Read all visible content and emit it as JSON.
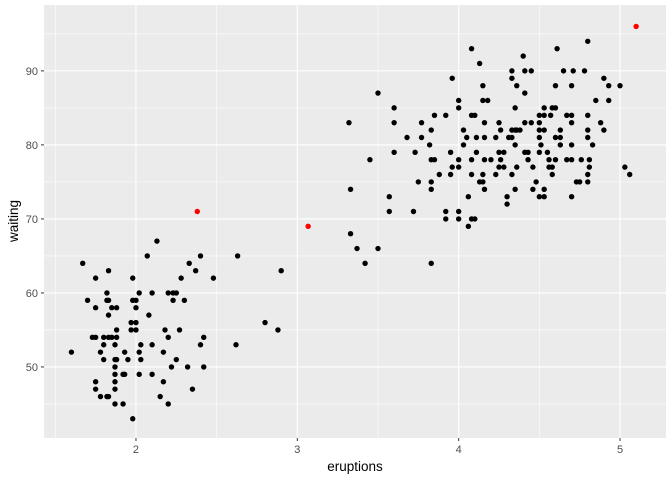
{
  "chart_data": {
    "type": "scatter",
    "title": "",
    "xlabel": "eruptions",
    "ylabel": "waiting",
    "xlim": [
      1.43,
      5.285
    ],
    "ylim": [
      40.4,
      98.9
    ],
    "x_ticks": [
      2,
      3,
      4,
      5
    ],
    "y_ticks": [
      50,
      60,
      70,
      80,
      90
    ],
    "x_tick_labels": [
      "2",
      "3",
      "4",
      "5"
    ],
    "y_tick_labels": [
      "50",
      "60",
      "70",
      "80",
      "90"
    ],
    "grid": true,
    "background": "#EBEBEB",
    "series": [
      {
        "color": "#000000",
        "points": [
          [
            2.13,
            67
          ],
          [
            2.07,
            65
          ],
          [
            2.4,
            65
          ],
          [
            2.63,
            65
          ],
          [
            1.67,
            64
          ],
          [
            2.33,
            64
          ],
          [
            1.83,
            63
          ],
          [
            2.37,
            63
          ],
          [
            2.9,
            63
          ],
          [
            1.75,
            62
          ],
          [
            1.98,
            62
          ],
          [
            2.28,
            62
          ],
          [
            2.48,
            62
          ],
          [
            1.82,
            60
          ],
          [
            2.02,
            60
          ],
          [
            2.1,
            60
          ],
          [
            2.2,
            60
          ],
          [
            2.23,
            60
          ],
          [
            2.25,
            60
          ],
          [
            1.7,
            59
          ],
          [
            1.82,
            59
          ],
          [
            1.83,
            59
          ],
          [
            1.98,
            59
          ],
          [
            2.0,
            59
          ],
          [
            2.23,
            59
          ],
          [
            2.3,
            59
          ],
          [
            1.75,
            58
          ],
          [
            1.85,
            58
          ],
          [
            1.88,
            58
          ],
          [
            2.0,
            58
          ],
          [
            1.83,
            57
          ],
          [
            2.08,
            57
          ],
          [
            1.97,
            56
          ],
          [
            2.0,
            56
          ],
          [
            2.8,
            56
          ],
          [
            1.88,
            55
          ],
          [
            1.97,
            55
          ],
          [
            2.0,
            55
          ],
          [
            2.18,
            55
          ],
          [
            2.27,
            55
          ],
          [
            2.88,
            55
          ],
          [
            1.73,
            54
          ],
          [
            1.75,
            54
          ],
          [
            1.8,
            54
          ],
          [
            1.83,
            54
          ],
          [
            1.85,
            54
          ],
          [
            1.88,
            54
          ],
          [
            2.2,
            54
          ],
          [
            2.42,
            54
          ],
          [
            1.8,
            53
          ],
          [
            1.87,
            53
          ],
          [
            2.03,
            53
          ],
          [
            2.1,
            53
          ],
          [
            2.4,
            53
          ],
          [
            2.62,
            53
          ],
          [
            1.6,
            52
          ],
          [
            1.78,
            52
          ],
          [
            1.93,
            52
          ],
          [
            2.02,
            52
          ],
          [
            2.17,
            52
          ],
          [
            1.8,
            51
          ],
          [
            1.87,
            51
          ],
          [
            1.88,
            51
          ],
          [
            1.95,
            51
          ],
          [
            2.03,
            51
          ],
          [
            2.25,
            51
          ],
          [
            1.87,
            50
          ],
          [
            2.22,
            50
          ],
          [
            2.32,
            50
          ],
          [
            2.42,
            50
          ],
          [
            1.87,
            49
          ],
          [
            1.92,
            49
          ],
          [
            1.93,
            49
          ],
          [
            2.02,
            49
          ],
          [
            2.1,
            49
          ],
          [
            1.75,
            48
          ],
          [
            1.87,
            48
          ],
          [
            2.17,
            48
          ],
          [
            1.75,
            47
          ],
          [
            1.87,
            47
          ],
          [
            2.35,
            47
          ],
          [
            1.78,
            46
          ],
          [
            1.82,
            46
          ],
          [
            1.83,
            46
          ],
          [
            2.15,
            46
          ],
          [
            1.87,
            45
          ],
          [
            1.92,
            45
          ],
          [
            2.2,
            45
          ],
          [
            1.98,
            43
          ],
          [
            4.8,
            94
          ],
          [
            4.08,
            93
          ],
          [
            4.61,
            93
          ],
          [
            4.4,
            92
          ],
          [
            4.13,
            91
          ],
          [
            4.33,
            90
          ],
          [
            4.41,
            90
          ],
          [
            4.45,
            90
          ],
          [
            4.65,
            90
          ],
          [
            4.71,
            90
          ],
          [
            4.78,
            90
          ],
          [
            3.96,
            89
          ],
          [
            4.33,
            89
          ],
          [
            4.9,
            89
          ],
          [
            4.15,
            88
          ],
          [
            4.36,
            88
          ],
          [
            4.6,
            88
          ],
          [
            4.7,
            88
          ],
          [
            4.93,
            88
          ],
          [
            5.0,
            88
          ],
          [
            3.5,
            87
          ],
          [
            4.41,
            87
          ],
          [
            4.0,
            86
          ],
          [
            4.15,
            86
          ],
          [
            4.18,
            86
          ],
          [
            4.85,
            86
          ],
          [
            4.93,
            86
          ],
          [
            3.6,
            85
          ],
          [
            4.0,
            85
          ],
          [
            4.35,
            85
          ],
          [
            4.53,
            85
          ],
          [
            4.58,
            85
          ],
          [
            4.6,
            85
          ],
          [
            3.85,
            84
          ],
          [
            3.92,
            84
          ],
          [
            4.08,
            84
          ],
          [
            4.1,
            84
          ],
          [
            4.5,
            84
          ],
          [
            4.53,
            84
          ],
          [
            4.57,
            84
          ],
          [
            4.67,
            84
          ],
          [
            4.7,
            84
          ],
          [
            4.8,
            84
          ],
          [
            3.32,
            83
          ],
          [
            3.6,
            83
          ],
          [
            3.77,
            83
          ],
          [
            4.16,
            83
          ],
          [
            4.25,
            83
          ],
          [
            4.41,
            83
          ],
          [
            4.45,
            83
          ],
          [
            4.5,
            83
          ],
          [
            4.7,
            83
          ],
          [
            4.88,
            83
          ],
          [
            3.83,
            82
          ],
          [
            4.03,
            82
          ],
          [
            4.26,
            82
          ],
          [
            4.33,
            82
          ],
          [
            4.35,
            82
          ],
          [
            4.36,
            82
          ],
          [
            4.38,
            82
          ],
          [
            4.5,
            82
          ],
          [
            4.53,
            82
          ],
          [
            4.63,
            82
          ],
          [
            4.8,
            82
          ],
          [
            4.9,
            82
          ],
          [
            3.68,
            81
          ],
          [
            3.77,
            81
          ],
          [
            4.05,
            81
          ],
          [
            4.11,
            81
          ],
          [
            4.16,
            81
          ],
          [
            4.23,
            81
          ],
          [
            4.31,
            81
          ],
          [
            4.33,
            81
          ],
          [
            4.5,
            81
          ],
          [
            4.6,
            81
          ],
          [
            4.63,
            81
          ],
          [
            4.8,
            81
          ],
          [
            3.82,
            80
          ],
          [
            4.03,
            80
          ],
          [
            4.35,
            80
          ],
          [
            4.51,
            80
          ],
          [
            4.63,
            80
          ],
          [
            4.7,
            80
          ],
          [
            4.83,
            80
          ],
          [
            3.6,
            79
          ],
          [
            3.73,
            79
          ],
          [
            3.95,
            79
          ],
          [
            4.11,
            79
          ],
          [
            4.25,
            79
          ],
          [
            4.28,
            79
          ],
          [
            4.41,
            79
          ],
          [
            4.43,
            79
          ],
          [
            4.5,
            79
          ],
          [
            4.55,
            79
          ],
          [
            3.45,
            78
          ],
          [
            3.83,
            78
          ],
          [
            3.85,
            78
          ],
          [
            4.0,
            78
          ],
          [
            4.08,
            78
          ],
          [
            4.16,
            78
          ],
          [
            4.2,
            78
          ],
          [
            4.26,
            78
          ],
          [
            4.43,
            78
          ],
          [
            4.56,
            78
          ],
          [
            4.6,
            78
          ],
          [
            4.67,
            78
          ],
          [
            4.7,
            78
          ],
          [
            4.76,
            78
          ],
          [
            4.81,
            78
          ],
          [
            3.96,
            77
          ],
          [
            4.0,
            77
          ],
          [
            4.25,
            77
          ],
          [
            4.28,
            77
          ],
          [
            4.36,
            77
          ],
          [
            4.46,
            77
          ],
          [
            4.56,
            77
          ],
          [
            4.58,
            77
          ],
          [
            4.81,
            77
          ],
          [
            5.03,
            77
          ],
          [
            3.88,
            76
          ],
          [
            3.95,
            76
          ],
          [
            4.08,
            76
          ],
          [
            4.15,
            76
          ],
          [
            4.23,
            76
          ],
          [
            4.33,
            76
          ],
          [
            4.58,
            76
          ],
          [
            4.8,
            76
          ],
          [
            5.06,
            76
          ],
          [
            3.75,
            75
          ],
          [
            3.83,
            75
          ],
          [
            4.13,
            75
          ],
          [
            4.15,
            75
          ],
          [
            4.48,
            75
          ],
          [
            4.73,
            75
          ],
          [
            4.75,
            75
          ],
          [
            4.8,
            75
          ],
          [
            3.33,
            74
          ],
          [
            3.83,
            74
          ],
          [
            4.16,
            74
          ],
          [
            4.35,
            74
          ],
          [
            4.46,
            74
          ],
          [
            4.53,
            74
          ],
          [
            3.57,
            73
          ],
          [
            4.06,
            73
          ],
          [
            4.3,
            73
          ],
          [
            4.5,
            73
          ],
          [
            4.53,
            73
          ],
          [
            4.7,
            73
          ],
          [
            4.3,
            72
          ],
          [
            3.57,
            71
          ],
          [
            3.72,
            71
          ],
          [
            3.92,
            71
          ],
          [
            4.0,
            71
          ],
          [
            3.92,
            70
          ],
          [
            4.0,
            70
          ],
          [
            4.08,
            70
          ],
          [
            4.1,
            70
          ],
          [
            4.06,
            69
          ],
          [
            3.33,
            68
          ],
          [
            3.37,
            66
          ],
          [
            3.5,
            66
          ],
          [
            3.42,
            64
          ],
          [
            3.83,
            64
          ]
        ]
      },
      {
        "color": "#FF0000",
        "points": [
          [
            2.38,
            71
          ],
          [
            3.067,
            69
          ],
          [
            5.1,
            96
          ]
        ]
      }
    ]
  }
}
